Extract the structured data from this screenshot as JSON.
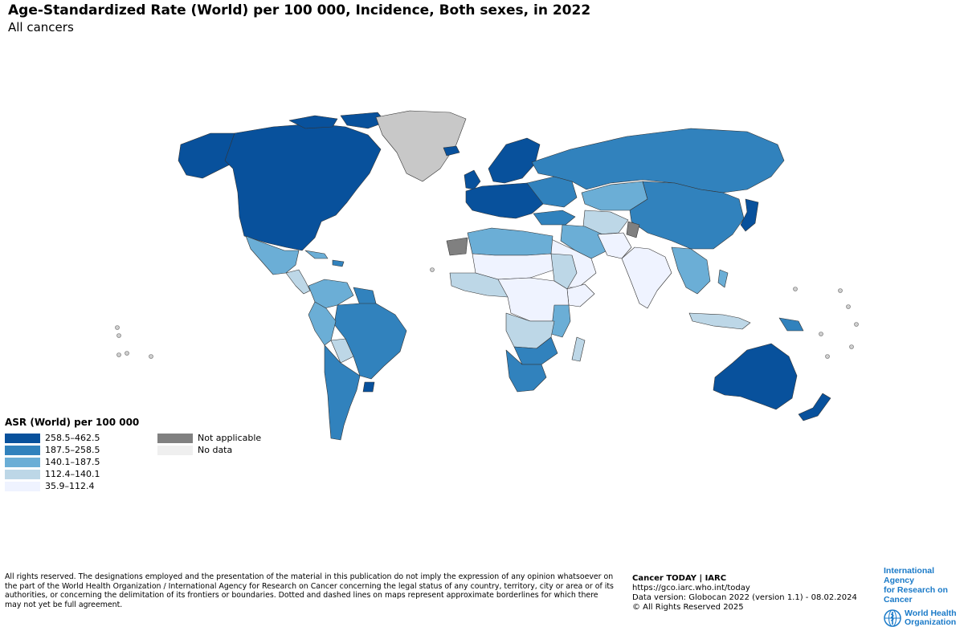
{
  "header": {
    "title": "Age-Standardized Rate (World) per 100 000, Incidence, Both sexes, in 2022",
    "subtitle": "All cancers"
  },
  "legend": {
    "title": "ASR (World) per 100 000",
    "classes": [
      {
        "label": "258.5–462.5",
        "color": "#08519c"
      },
      {
        "label": "187.5–258.5",
        "color": "#3182bd"
      },
      {
        "label": "140.1–187.5",
        "color": "#6baed6"
      },
      {
        "label": "112.4–140.1",
        "color": "#bdd7e7"
      },
      {
        "label": "35.9–112.4",
        "color": "#eff3ff"
      }
    ],
    "extra": [
      {
        "label": "Not applicable",
        "color": "#808080"
      },
      {
        "label": "No data",
        "color": "#efefef"
      }
    ]
  },
  "map": {
    "regions": [
      {
        "name": "north-america",
        "cls": 0
      },
      {
        "name": "alaska",
        "cls": 0
      },
      {
        "name": "greenland",
        "cls": "nodata"
      },
      {
        "name": "iceland",
        "cls": 0
      },
      {
        "name": "mexico",
        "cls": 2
      },
      {
        "name": "central-america",
        "cls": 3
      },
      {
        "name": "cuba",
        "cls": 2
      },
      {
        "name": "caribbean",
        "cls": 1
      },
      {
        "name": "colombia-venezuela",
        "cls": 2
      },
      {
        "name": "guianas",
        "cls": 1
      },
      {
        "name": "brazil",
        "cls": 1
      },
      {
        "name": "andes",
        "cls": 2
      },
      {
        "name": "bolivia",
        "cls": 3
      },
      {
        "name": "argentina-chile",
        "cls": 1
      },
      {
        "name": "uruguay",
        "cls": 0
      },
      {
        "name": "western-europe",
        "cls": 0
      },
      {
        "name": "uk-ireland",
        "cls": 0
      },
      {
        "name": "scandinavia",
        "cls": 0
      },
      {
        "name": "eastern-europe",
        "cls": 1
      },
      {
        "name": "russia",
        "cls": 1
      },
      {
        "name": "kazakhstan",
        "cls": 2
      },
      {
        "name": "mongolia-china",
        "cls": 1
      },
      {
        "name": "japan-korea",
        "cls": 0
      },
      {
        "name": "turkey-caucasus",
        "cls": 1
      },
      {
        "name": "central-asia",
        "cls": 3
      },
      {
        "name": "iran-middle-east",
        "cls": 2
      },
      {
        "name": "arabian-peninsula",
        "cls": 4
      },
      {
        "name": "pakistan-afghanistan",
        "cls": 4
      },
      {
        "name": "india",
        "cls": 4
      },
      {
        "name": "kashmir",
        "cls": "na"
      },
      {
        "name": "southeast-asia",
        "cls": 2
      },
      {
        "name": "indonesia",
        "cls": 3
      },
      {
        "name": "philippines",
        "cls": 2
      },
      {
        "name": "papua",
        "cls": 1
      },
      {
        "name": "australia",
        "cls": 0
      },
      {
        "name": "new-zealand",
        "cls": 0
      },
      {
        "name": "maghreb",
        "cls": 2
      },
      {
        "name": "western-sahara",
        "cls": "na"
      },
      {
        "name": "sahel",
        "cls": 4
      },
      {
        "name": "west-africa",
        "cls": 3
      },
      {
        "name": "egypt-sudan",
        "cls": 3
      },
      {
        "name": "horn-of-africa",
        "cls": 4
      },
      {
        "name": "central-africa",
        "cls": 4
      },
      {
        "name": "east-africa",
        "cls": 2
      },
      {
        "name": "angola-congo",
        "cls": 3
      },
      {
        "name": "zambia-zimbabwe",
        "cls": 1
      },
      {
        "name": "southern-africa",
        "cls": 1
      },
      {
        "name": "madagascar",
        "cls": 3
      }
    ]
  },
  "footer": {
    "disclaimer": "All rights reserved. The designations employed and the presentation of the material in this publication do not imply the expression of any opinion whatsoever on the part of the World Health Organization / International Agency for Research on Cancer concerning the legal status of any country, territory, city or area or of its authorities, or concerning the delimitation of its frontiers or boundaries. Dotted and dashed lines on maps represent approximate borderlines for which there may not yet be full agreement.",
    "source_name": "Cancer TODAY | IARC",
    "source_url": "https://gco.iarc.who.int/today",
    "data_version": "Data version: Globocan 2022 (version 1.1) - 08.02.2024",
    "rights": "© All Rights Reserved 2025"
  },
  "logos": {
    "iarc_line1": "International Agency",
    "iarc_line2": "for Research on Cancer",
    "who_line1": "World Health",
    "who_line2": "Organization",
    "iarc_icon": "iarc-wordmark",
    "who_icon": "who-emblem-icon"
  }
}
